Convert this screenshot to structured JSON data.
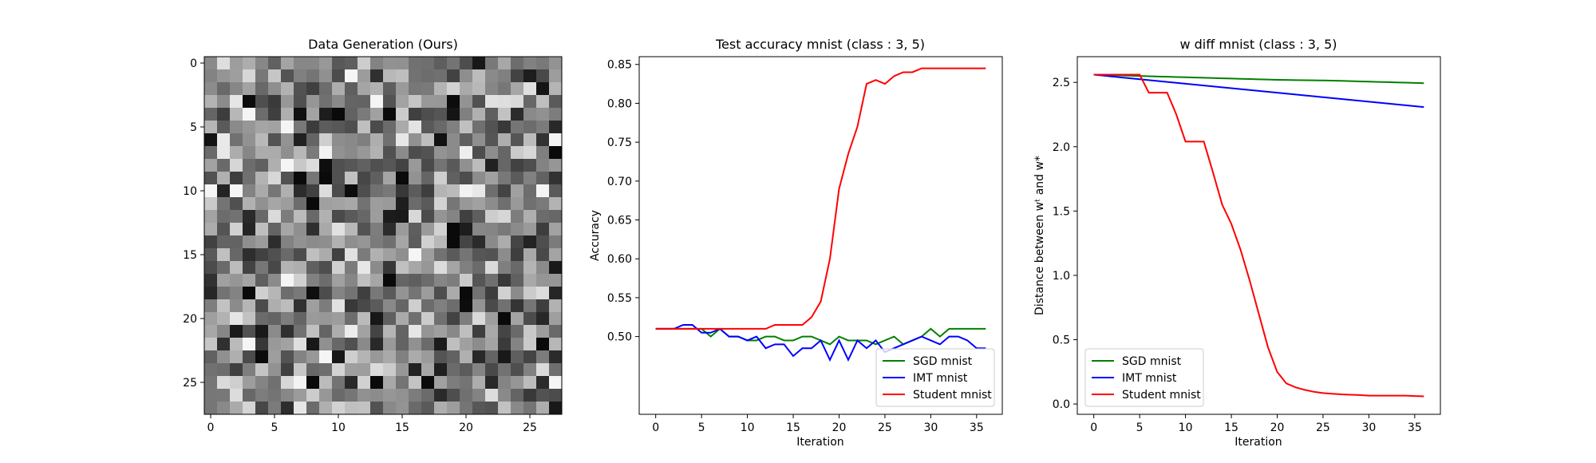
{
  "chart_data": [
    {
      "type": "heatmap",
      "title": "Data Generation (Ours)",
      "xlabel": "",
      "ylabel": "",
      "xlim": [
        -0.5,
        27.5
      ],
      "ylim": [
        27.5,
        -0.5
      ],
      "xticks": [
        0,
        5,
        10,
        15,
        20,
        25
      ],
      "yticks": [
        0,
        5,
        10,
        15,
        20,
        25
      ],
      "colormap": "gray",
      "rows": 28,
      "cols": 28,
      "values": "28x28 grid of grayscale noise (random pixel intensities)"
    },
    {
      "type": "line",
      "title": "Test accuracy mnist (class : 3, 5)",
      "xlabel": "Iteration",
      "ylabel": "Accuracy",
      "xlim": [
        -1.8,
        37.8
      ],
      "ylim": [
        0.4,
        0.86
      ],
      "xticks": [
        0,
        5,
        10,
        15,
        20,
        25,
        30,
        35
      ],
      "yticks": [
        "0.50",
        "0.55",
        "0.60",
        "0.65",
        "0.70",
        "0.75",
        "0.80",
        "0.85"
      ],
      "legend": "lower-right",
      "x": [
        0,
        1,
        2,
        3,
        4,
        5,
        6,
        7,
        8,
        9,
        10,
        11,
        12,
        13,
        14,
        15,
        16,
        17,
        18,
        19,
        20,
        21,
        22,
        23,
        24,
        25,
        26,
        27,
        28,
        29,
        30,
        31,
        32,
        33,
        34,
        35,
        36
      ],
      "series": [
        {
          "name": "SGD mnist",
          "color": "#008000",
          "values": [
            0.51,
            0.51,
            0.51,
            0.51,
            0.51,
            0.51,
            0.5,
            0.51,
            0.5,
            0.5,
            0.495,
            0.495,
            0.5,
            0.5,
            0.495,
            0.495,
            0.5,
            0.5,
            0.495,
            0.49,
            0.5,
            0.495,
            0.495,
            0.495,
            0.49,
            0.495,
            0.5,
            0.49,
            0.495,
            0.5,
            0.51,
            0.5,
            0.51,
            0.51,
            0.51,
            0.51,
            0.51
          ]
        },
        {
          "name": "IMT mnist",
          "color": "#0000ff",
          "values": [
            0.51,
            0.51,
            0.51,
            0.515,
            0.515,
            0.505,
            0.505,
            0.51,
            0.5,
            0.5,
            0.495,
            0.5,
            0.485,
            0.49,
            0.49,
            0.475,
            0.485,
            0.485,
            0.495,
            0.47,
            0.495,
            0.47,
            0.495,
            0.485,
            0.495,
            0.48,
            0.485,
            0.49,
            0.495,
            0.5,
            0.495,
            0.49,
            0.5,
            0.5,
            0.495,
            0.485,
            0.485
          ]
        },
        {
          "name": "Student mnist",
          "color": "#ff0000",
          "values": [
            0.51,
            0.51,
            0.51,
            0.51,
            0.51,
            0.51,
            0.51,
            0.51,
            0.51,
            0.51,
            0.51,
            0.51,
            0.51,
            0.515,
            0.515,
            0.515,
            0.515,
            0.525,
            0.545,
            0.6,
            0.69,
            0.735,
            0.77,
            0.825,
            0.83,
            0.825,
            0.835,
            0.84,
            0.84,
            0.845,
            0.845,
            0.845,
            0.845,
            0.845,
            0.845,
            0.845,
            0.845
          ]
        }
      ]
    },
    {
      "type": "line",
      "title": "w diff mnist (class : 3, 5)",
      "xlabel": "Iteration",
      "ylabel": "Distance between wᵗ and w*",
      "xlim": [
        -1.8,
        37.8
      ],
      "ylim": [
        -0.08,
        2.7
      ],
      "xticks": [
        0,
        5,
        10,
        15,
        20,
        25,
        30,
        35
      ],
      "yticks": [
        "0.0",
        "0.5",
        "1.0",
        "1.5",
        "2.0",
        "2.5"
      ],
      "legend": "lower-left",
      "x": [
        0,
        1,
        2,
        3,
        4,
        5,
        6,
        7,
        8,
        9,
        10,
        11,
        12,
        13,
        14,
        15,
        16,
        17,
        18,
        19,
        20,
        21,
        22,
        23,
        24,
        25,
        26,
        27,
        28,
        29,
        30,
        31,
        32,
        33,
        34,
        35,
        36
      ],
      "series": [
        {
          "name": "SGD mnist",
          "color": "#008000",
          "values": [
            2.56,
            2.558,
            2.556,
            2.554,
            2.552,
            2.55,
            2.548,
            2.546,
            2.544,
            2.542,
            2.54,
            2.538,
            2.536,
            2.534,
            2.532,
            2.53,
            2.528,
            2.526,
            2.524,
            2.522,
            2.52,
            2.519,
            2.518,
            2.517,
            2.516,
            2.515,
            2.514,
            2.512,
            2.51,
            2.508,
            2.506,
            2.504,
            2.502,
            2.5,
            2.498,
            2.496,
            2.494
          ]
        },
        {
          "name": "IMT mnist",
          "color": "#0000ff",
          "values": [
            2.56,
            2.553,
            2.546,
            2.539,
            2.532,
            2.525,
            2.518,
            2.511,
            2.504,
            2.497,
            2.49,
            2.483,
            2.476,
            2.469,
            2.462,
            2.455,
            2.448,
            2.441,
            2.434,
            2.427,
            2.42,
            2.413,
            2.406,
            2.399,
            2.392,
            2.385,
            2.378,
            2.371,
            2.364,
            2.357,
            2.35,
            2.343,
            2.336,
            2.329,
            2.322,
            2.315,
            2.308
          ]
        },
        {
          "name": "Student mnist",
          "color": "#ff0000",
          "values": [
            2.56,
            2.56,
            2.56,
            2.56,
            2.56,
            2.56,
            2.42,
            2.42,
            2.42,
            2.25,
            2.04,
            2.04,
            2.04,
            1.8,
            1.55,
            1.4,
            1.2,
            0.96,
            0.7,
            0.44,
            0.25,
            0.16,
            0.13,
            0.11,
            0.095,
            0.085,
            0.08,
            0.075,
            0.072,
            0.07,
            0.065,
            0.065,
            0.065,
            0.065,
            0.065,
            0.062,
            0.06
          ]
        }
      ]
    }
  ]
}
